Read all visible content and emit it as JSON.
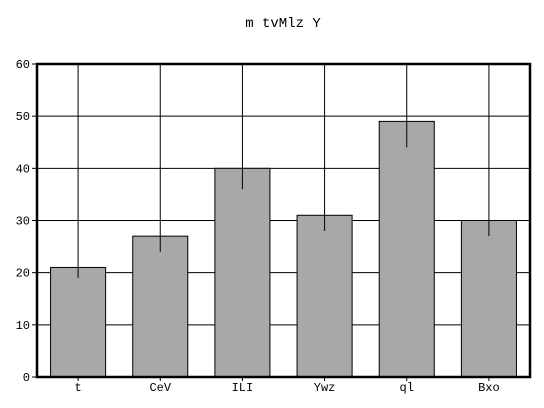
{
  "chart_data": {
    "type": "bar",
    "title": "m tvMlz Y",
    "xlabel": "",
    "ylabel": "",
    "categories": [
      "t",
      "CeV",
      "ILI",
      "Ywz",
      "ql",
      "Bxo"
    ],
    "values": [
      21,
      27,
      40,
      31,
      49,
      30
    ],
    "error_low": [
      19,
      24,
      36,
      28,
      44,
      27
    ],
    "ylim": [
      0,
      60
    ],
    "yticks": [
      0,
      10,
      20,
      30,
      40,
      50,
      60
    ],
    "grid": true,
    "legend": "none",
    "colors": {
      "bar_fill": "#a8a8a8",
      "bar_stroke": "#000000",
      "grid": "#000000",
      "axis": "#000000",
      "background": "#ffffff"
    }
  }
}
